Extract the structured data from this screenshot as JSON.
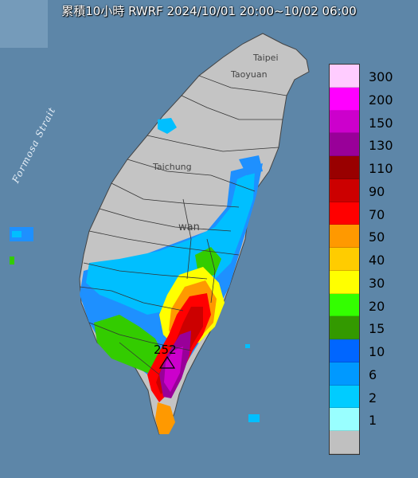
{
  "title": "累積10小時 RWRF 2024/10/01 20:00~10/02 06:00",
  "places": {
    "taipei": "Taipei",
    "taoyuan": "Taoyuan",
    "taichung": "Taichung",
    "taiwan": "wan"
  },
  "strait": "Formosa Strait",
  "max_value": "252",
  "legend": {
    "title": "",
    "items": [
      {
        "label": "300",
        "color": "#ffccff"
      },
      {
        "label": "200",
        "color": "#ff00ff"
      },
      {
        "label": "150",
        "color": "#cc00cc"
      },
      {
        "label": "130",
        "color": "#990099"
      },
      {
        "label": "110",
        "color": "#990000"
      },
      {
        "label": "90",
        "color": "#cc0000"
      },
      {
        "label": "70",
        "color": "#ff0000"
      },
      {
        "label": "50",
        "color": "#ff9900"
      },
      {
        "label": "40",
        "color": "#ffcc00"
      },
      {
        "label": "30",
        "color": "#ffff00"
      },
      {
        "label": "20",
        "color": "#33ff00"
      },
      {
        "label": "15",
        "color": "#339900"
      },
      {
        "label": "10",
        "color": "#0066ff"
      },
      {
        "label": "6",
        "color": "#0099ff"
      },
      {
        "label": "2",
        "color": "#00ccff"
      },
      {
        "label": "1",
        "color": "#99ffff"
      },
      {
        "label": "",
        "color": "#c0c0c0"
      }
    ]
  },
  "colors": {
    "sea": "#5d86a8",
    "land": "#c4c4c4"
  }
}
